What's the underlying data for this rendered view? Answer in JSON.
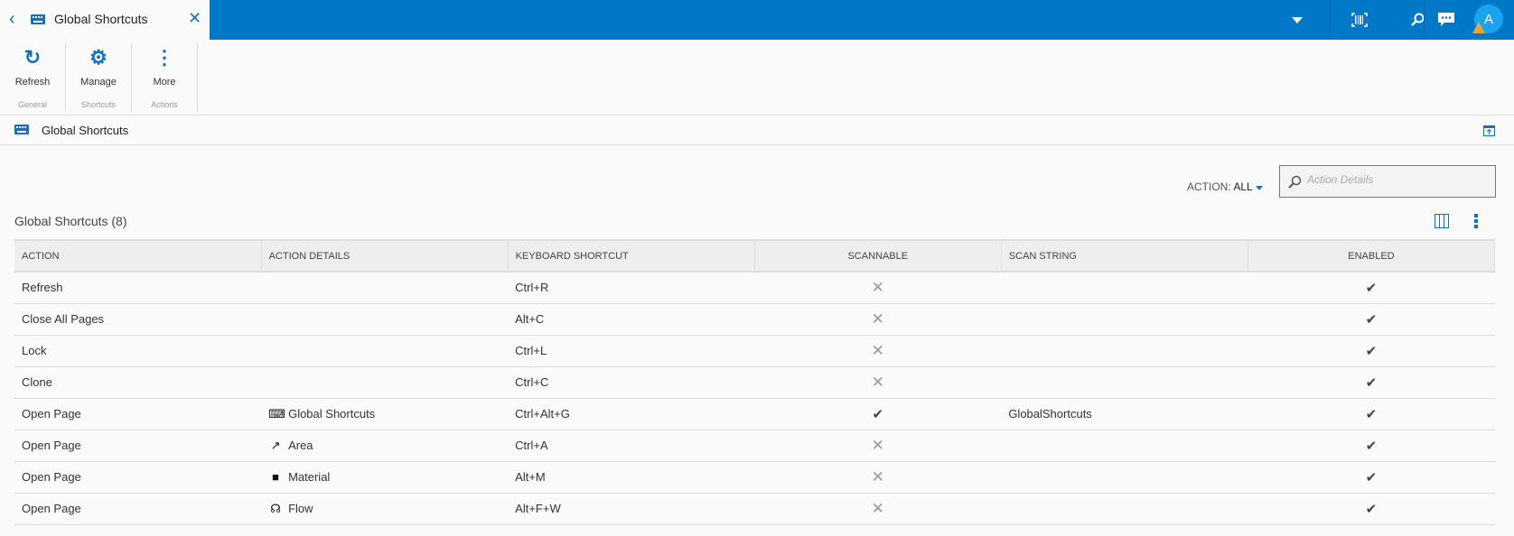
{
  "tab": {
    "title": "Global Shortcuts"
  },
  "topbar": {
    "avatar_initial": "A",
    "icons": [
      "dropdown-icon",
      "barcode-icon",
      "search-icon",
      "chat-icon"
    ]
  },
  "ribbon": {
    "groups": [
      {
        "label": "General",
        "button": "Refresh",
        "icon": "refresh-icon"
      },
      {
        "label": "Shortcuts",
        "button": "Manage",
        "icon": "gear-icon"
      },
      {
        "label": "Actions",
        "button": "More",
        "icon": "more-vertical-icon"
      }
    ]
  },
  "section": {
    "title": "Global Shortcuts"
  },
  "filter": {
    "label": "ACTION:",
    "value": "ALL"
  },
  "search": {
    "placeholder": "Action Details",
    "value": ""
  },
  "grid": {
    "title": "Global Shortcuts (8)",
    "columns": [
      "ACTION",
      "ACTION DETAILS",
      "KEYBOARD SHORTCUT",
      "SCANNABLE",
      "SCAN STRING",
      "ENABLED"
    ],
    "rows": [
      {
        "action": "Refresh",
        "details": "",
        "details_icon": "",
        "shortcut": "Ctrl+R",
        "scannable": false,
        "scan_string": "",
        "enabled": true
      },
      {
        "action": "Close All Pages",
        "details": "",
        "details_icon": "",
        "shortcut": "Alt+C",
        "scannable": false,
        "scan_string": "",
        "enabled": true
      },
      {
        "action": "Lock",
        "details": "",
        "details_icon": "",
        "shortcut": "Ctrl+L",
        "scannable": false,
        "scan_string": "",
        "enabled": true
      },
      {
        "action": "Clone",
        "details": "",
        "details_icon": "",
        "shortcut": "Ctrl+C",
        "scannable": false,
        "scan_string": "",
        "enabled": true
      },
      {
        "action": "Open Page",
        "details": "Global Shortcuts",
        "details_icon": "keyboard-icon",
        "shortcut": "Ctrl+Alt+G",
        "scannable": true,
        "scan_string": "GlobalShortcuts",
        "enabled": true
      },
      {
        "action": "Open Page",
        "details": "Area",
        "details_icon": "external-link-icon",
        "shortcut": "Ctrl+A",
        "scannable": false,
        "scan_string": "",
        "enabled": true
      },
      {
        "action": "Open Page",
        "details": "Material",
        "details_icon": "square-icon",
        "shortcut": "Alt+M",
        "scannable": false,
        "scan_string": "",
        "enabled": true
      },
      {
        "action": "Open Page",
        "details": "Flow",
        "details_icon": "flow-icon",
        "shortcut": "Alt+F+W",
        "scannable": false,
        "scan_string": "",
        "enabled": true
      }
    ]
  },
  "colors": {
    "accent": "#0078c8",
    "avatar": "#1aa3f0",
    "warning": "#e6a23c"
  }
}
